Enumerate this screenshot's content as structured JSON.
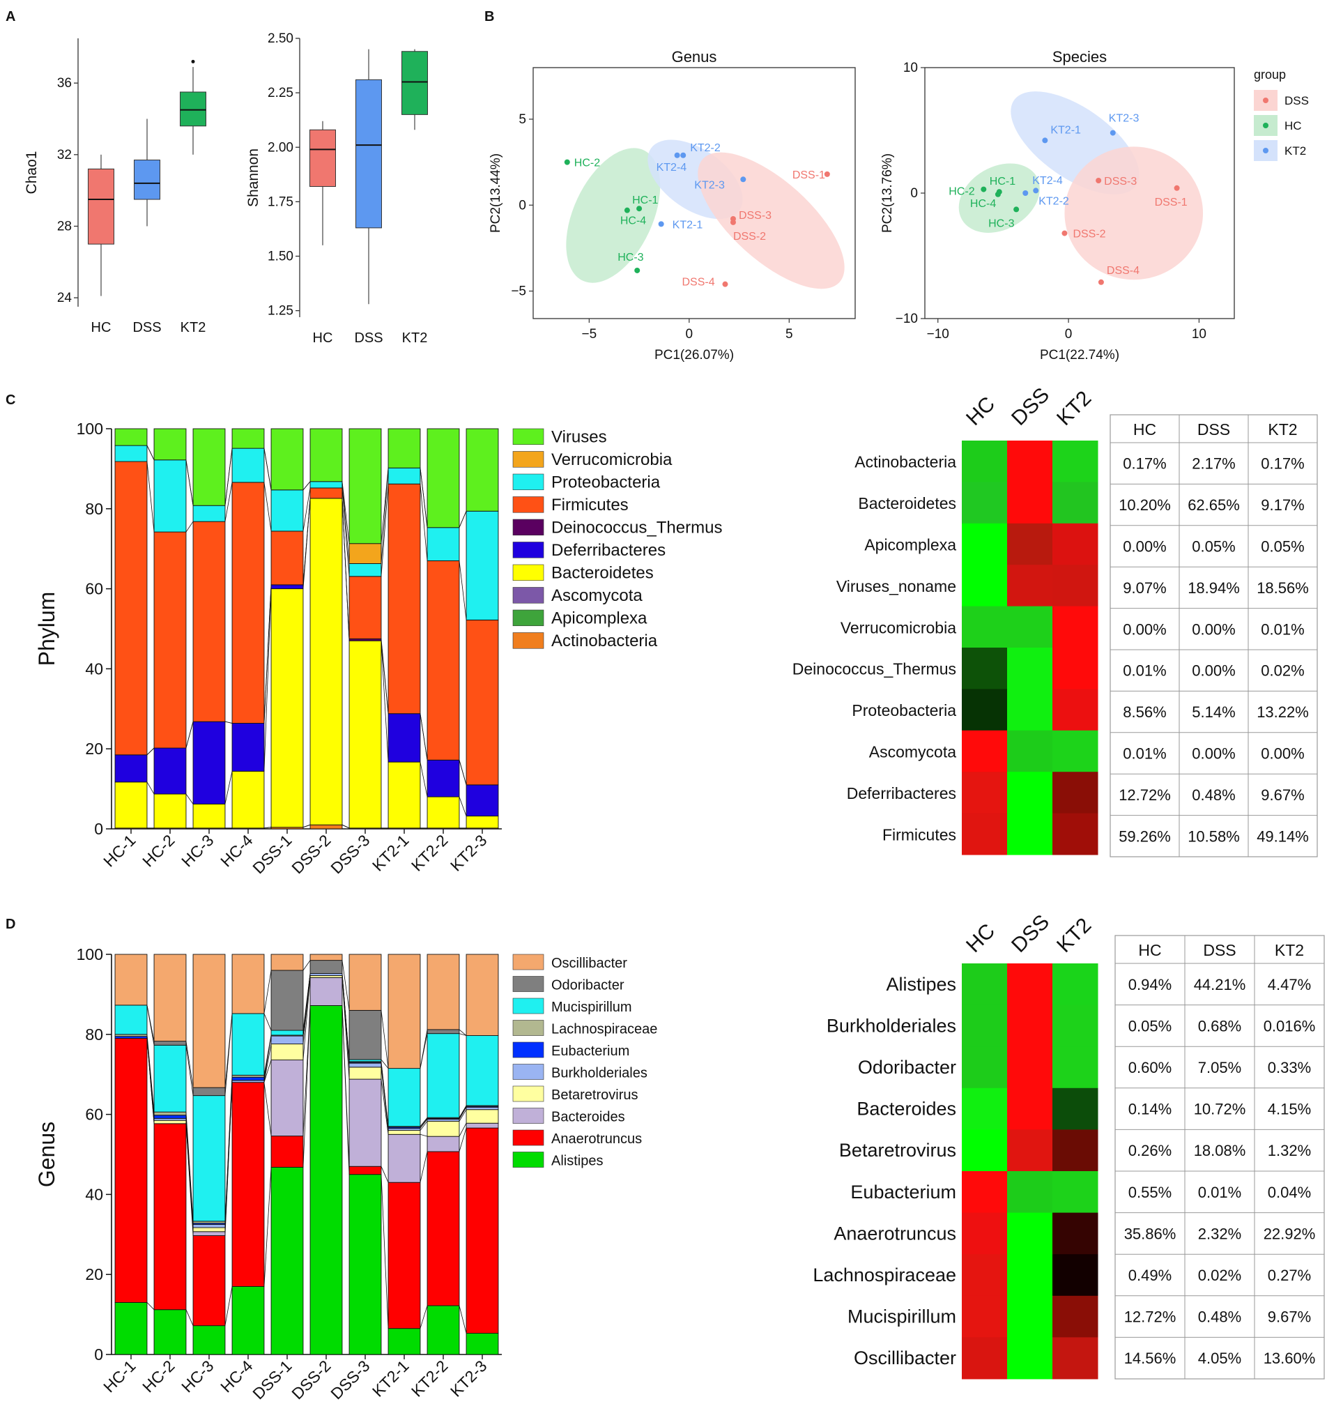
{
  "panel_letters": {
    "a": "A",
    "b": "B",
    "c": "C",
    "d": "D"
  },
  "colors": {
    "HC": "#1fb15a",
    "DSS": "#f0776f",
    "KT2": "#5d98f0"
  },
  "chart_data": [
    {
      "id": "chao1",
      "type": "box",
      "title": "",
      "ylabel": "Chao1",
      "categories": [
        "HC",
        "DSS",
        "KT2"
      ],
      "ylim": [
        23.5,
        38.5
      ],
      "yticks": [
        24,
        28,
        32,
        36
      ],
      "boxes": [
        {
          "group": "HC",
          "min": 24.1,
          "q1": 27.0,
          "median": 29.5,
          "q3": 31.2,
          "max": 32.0,
          "color": "#f0776f"
        },
        {
          "group": "DSS",
          "min": 28.0,
          "q1": 29.5,
          "median": 30.4,
          "q3": 31.7,
          "max": 34.0,
          "color": "#5d98f0"
        },
        {
          "group": "KT2",
          "min": 32.0,
          "q1": 33.6,
          "median": 34.5,
          "q3": 35.5,
          "max": 36.9,
          "color": "#1fb15a",
          "outliers": [
            37.2
          ]
        }
      ]
    },
    {
      "id": "shannon",
      "type": "box",
      "title": "",
      "ylabel": "Shannon",
      "categories": [
        "HC",
        "DSS",
        "KT2"
      ],
      "ylim": [
        1.22,
        2.5
      ],
      "yticks": [
        1.25,
        1.5,
        1.75,
        2.0,
        2.25,
        2.5
      ],
      "ytick_labels": [
        "1.25",
        "1.50",
        "1.75",
        "2.00",
        "2.25",
        "2.50"
      ],
      "boxes": [
        {
          "group": "HC",
          "min": 1.55,
          "q1": 1.82,
          "median": 1.99,
          "q3": 2.08,
          "max": 2.12,
          "color": "#f0776f"
        },
        {
          "group": "DSS",
          "min": 1.28,
          "q1": 1.63,
          "median": 2.01,
          "q3": 2.31,
          "max": 2.45,
          "color": "#5d98f0"
        },
        {
          "group": "KT2",
          "min": 2.08,
          "q1": 2.15,
          "median": 2.3,
          "q3": 2.44,
          "max": 2.45,
          "color": "#1fb15a"
        }
      ]
    },
    {
      "id": "pca_genus",
      "type": "scatter",
      "title": "Genus",
      "xlabel": "PC1(26.07%)",
      "ylabel": "PC2(13.44%)",
      "xlim": [
        -7.8,
        8.3
      ],
      "ylim": [
        -6.6,
        8.0
      ],
      "xticks": [
        -5,
        0,
        5
      ],
      "xtick_labels": [
        "−5",
        "0",
        "5"
      ],
      "yticks": [
        -5,
        0,
        5
      ],
      "ytick_labels": [
        "−5",
        "0",
        "5"
      ],
      "ellipses": [
        {
          "group": "HC",
          "cx": -3.8,
          "cy": -0.6,
          "rx": 3.6,
          "ry": 2.3,
          "angle_deg": -65
        },
        {
          "group": "KT2",
          "cx": 0.3,
          "cy": 1.5,
          "rx": 2.7,
          "ry": 1.75,
          "angle_deg": 35
        },
        {
          "group": "DSS",
          "cx": 4.1,
          "cy": -0.9,
          "rx": 4.6,
          "ry": 2.3,
          "angle_deg": 42
        }
      ],
      "points": [
        {
          "label": "HC-2",
          "group": "HC",
          "x": -6.1,
          "y": 2.5
        },
        {
          "label": "HC-1",
          "group": "HC",
          "x": -2.5,
          "y": -0.2
        },
        {
          "label": "HC-4",
          "group": "HC",
          "x": -3.1,
          "y": -0.3
        },
        {
          "label": "HC-3",
          "group": "HC",
          "x": -2.6,
          "y": -3.8
        },
        {
          "label": "KT2-2",
          "group": "KT2",
          "x": -0.3,
          "y": 2.9
        },
        {
          "label": "KT2-4",
          "group": "KT2",
          "x": -0.6,
          "y": 2.9
        },
        {
          "label": "KT2-3",
          "group": "KT2",
          "x": 2.7,
          "y": 1.5
        },
        {
          "label": "KT2-1",
          "group": "KT2",
          "x": -1.4,
          "y": -1.1
        },
        {
          "label": "DSS-1",
          "group": "DSS",
          "x": 6.9,
          "y": 1.8
        },
        {
          "label": "DSS-3",
          "group": "DSS",
          "x": 2.2,
          "y": -0.8
        },
        {
          "label": "DSS-2",
          "group": "DSS",
          "x": 2.2,
          "y": -1.0
        },
        {
          "label": "DSS-4",
          "group": "DSS",
          "x": 1.8,
          "y": -4.6
        }
      ]
    },
    {
      "id": "pca_species",
      "type": "scatter",
      "title": "Species",
      "xlabel": "PC1(22.74%)",
      "ylabel": "PC2(13.76%)",
      "xlim": [
        -11.0,
        12.7
      ],
      "ylim": [
        -10.0,
        10.0
      ],
      "xticks": [
        -10,
        0,
        10
      ],
      "xtick_labels": [
        "−10",
        "0",
        "10"
      ],
      "yticks": [
        -10,
        0,
        10
      ],
      "ytick_labels": [
        "−10",
        "0",
        "10"
      ],
      "legend": {
        "title": "group",
        "entries": [
          "DSS",
          "HC",
          "KT2"
        ]
      },
      "ellipses": [
        {
          "group": "HC",
          "cx": -5.3,
          "cy": -0.4,
          "rx": 3.3,
          "ry": 2.5,
          "angle_deg": -30
        },
        {
          "group": "KT2",
          "cx": 0.5,
          "cy": 4.0,
          "rx": 5.7,
          "ry": 2.8,
          "angle_deg": 35
        },
        {
          "group": "DSS",
          "cx": 5.0,
          "cy": -1.6,
          "rx": 5.3,
          "ry": 5.3,
          "angle_deg": 0
        }
      ],
      "points": [
        {
          "label": "HC-1",
          "group": "HC",
          "x": -5.3,
          "y": 0.1
        },
        {
          "label": "HC-2",
          "group": "HC",
          "x": -6.5,
          "y": 0.3
        },
        {
          "label": "HC-4",
          "group": "HC",
          "x": -5.4,
          "y": -0.1
        },
        {
          "label": "HC-3",
          "group": "HC",
          "x": -4.0,
          "y": -1.3
        },
        {
          "label": "KT2-1",
          "group": "KT2",
          "x": -1.8,
          "y": 4.2
        },
        {
          "label": "KT2-3",
          "group": "KT2",
          "x": 3.4,
          "y": 4.8
        },
        {
          "label": "KT2-4",
          "group": "KT2",
          "x": -3.3,
          "y": 0.0
        },
        {
          "label": "KT2-2",
          "group": "KT2",
          "x": -2.5,
          "y": 0.2
        },
        {
          "label": "DSS-3",
          "group": "DSS",
          "x": 2.3,
          "y": 1.0
        },
        {
          "label": "DSS-1",
          "group": "DSS",
          "x": 8.3,
          "y": 0.4
        },
        {
          "label": "DSS-2",
          "group": "DSS",
          "x": -0.3,
          "y": -3.2
        },
        {
          "label": "DSS-4",
          "group": "DSS",
          "x": 2.5,
          "y": -7.1
        }
      ]
    },
    {
      "id": "phylum_bar",
      "type": "bar",
      "stacked": true,
      "ylabel": "Phylum",
      "ylim": [
        0,
        100
      ],
      "yticks": [
        0,
        20,
        40,
        60,
        80,
        100
      ],
      "categories": [
        "HC-1",
        "HC-2",
        "HC-3",
        "HC-4",
        "DSS-1",
        "DSS-2",
        "DSS-3",
        "KT2-1",
        "KT2-2",
        "KT2-3"
      ],
      "series": [
        {
          "name": "Actinobacteria",
          "color": "#f07e1e",
          "values": [
            0.2,
            0.2,
            0.2,
            0.2,
            0.4,
            1.0,
            0.2,
            0.2,
            0.2,
            0.2
          ]
        },
        {
          "name": "Apicomplexa",
          "color": "#3ea43b",
          "values": [
            0,
            0,
            0,
            0,
            0,
            0,
            0,
            0,
            0,
            0
          ]
        },
        {
          "name": "Ascomycota",
          "color": "#7c58a8",
          "values": [
            0,
            0,
            0,
            0,
            0,
            0,
            0,
            0,
            0,
            0
          ]
        },
        {
          "name": "Bacteroidetes",
          "color": "#ffff00",
          "values": [
            11.5,
            8.5,
            6.0,
            14.2,
            59.6,
            81.6,
            46.8,
            16.5,
            7.8,
            3.0
          ]
        },
        {
          "name": "Deferribacteres",
          "color": "#1f00df",
          "values": [
            6.8,
            11.5,
            20.6,
            12.0,
            1.0,
            0,
            0,
            12.1,
            9.2,
            7.8
          ]
        },
        {
          "name": "Deinococcus_Thermus",
          "color": "#5a0060",
          "values": [
            0,
            0,
            0,
            0,
            0,
            0,
            0.5,
            0,
            0,
            0
          ]
        },
        {
          "name": "Firmicutes",
          "color": "#ff5115",
          "values": [
            73.3,
            54.0,
            50.0,
            60.2,
            13.4,
            2.6,
            15.6,
            57.4,
            49.8,
            41.2
          ]
        },
        {
          "name": "Proteobacteria",
          "color": "#1ff0f0",
          "values": [
            4.0,
            18.0,
            4.0,
            8.5,
            10.3,
            1.6,
            3.2,
            4.0,
            8.3,
            27.2
          ]
        },
        {
          "name": "Verrucomicrobia",
          "color": "#f3a51c",
          "values": [
            0,
            0,
            0,
            0,
            0,
            0,
            5.0,
            0,
            0,
            0
          ]
        },
        {
          "name": "Viruses",
          "color": "#5ef01e",
          "values": [
            4.2,
            7.8,
            19.2,
            4.9,
            15.3,
            13.2,
            28.7,
            9.8,
            24.7,
            20.6
          ]
        }
      ]
    },
    {
      "id": "genus_bar",
      "type": "bar",
      "stacked": true,
      "ylabel": "Genus",
      "ylim": [
        0,
        100
      ],
      "yticks": [
        0,
        20,
        40,
        60,
        80,
        100
      ],
      "categories": [
        "HC-1",
        "HC-2",
        "HC-3",
        "HC-4",
        "DSS-1",
        "DSS-2",
        "DSS-3",
        "KT2-1",
        "KT2-2",
        "KT2-3"
      ],
      "series": [
        {
          "name": "Alistipes",
          "color": "#00dc00",
          "values": [
            13.0,
            11.2,
            7.2,
            17.0,
            46.8,
            87.2,
            45.0,
            6.5,
            12.2,
            5.3
          ]
        },
        {
          "name": "Anaerotruncus",
          "color": "#ff0000",
          "values": [
            66.0,
            46.5,
            22.5,
            51.0,
            7.8,
            0,
            2.0,
            36.5,
            38.5,
            51.3
          ]
        },
        {
          "name": "Bacteroides",
          "color": "#c0b0d8",
          "values": [
            0,
            0,
            1.0,
            0,
            19.0,
            7.0,
            21.8,
            12.0,
            3.8,
            1.2
          ]
        },
        {
          "name": "Betaretrovirus",
          "color": "#ffffa0",
          "values": [
            0,
            0.8,
            1.0,
            0,
            4.0,
            0.5,
            3.0,
            1.0,
            3.8,
            3.4
          ]
        },
        {
          "name": "Burkholderiales",
          "color": "#9ab4f2",
          "values": [
            0,
            0.5,
            0.8,
            0.5,
            2.0,
            0.5,
            1.0,
            0.5,
            0.5,
            0.6
          ]
        },
        {
          "name": "Eubacterium",
          "color": "#0030ff",
          "values": [
            0.5,
            0.8,
            0.3,
            0.8,
            0,
            0,
            0.2,
            0.3,
            0.2,
            0.2
          ]
        },
        {
          "name": "Lachnospiraceae",
          "color": "#b2b890",
          "values": [
            0.5,
            0.8,
            0.5,
            0.5,
            0.2,
            0,
            0.2,
            0.2,
            0.2,
            0.2
          ]
        },
        {
          "name": "Mucispirillum",
          "color": "#1ff0f0",
          "values": [
            7.3,
            16.7,
            31.4,
            15.4,
            1.2,
            0,
            0.5,
            14.5,
            21.0,
            17.5
          ]
        },
        {
          "name": "Odoribacter",
          "color": "#7f7f7f",
          "values": [
            0,
            1.0,
            2.0,
            0,
            15.0,
            3.3,
            12.3,
            0,
            1.0,
            0
          ]
        },
        {
          "name": "Oscillibacter",
          "color": "#f4a86e",
          "values": [
            12.7,
            21.7,
            33.3,
            14.8,
            4.0,
            1.5,
            14.0,
            28.5,
            18.8,
            20.3
          ]
        }
      ]
    },
    {
      "id": "phylum_heatmap",
      "type": "heatmap",
      "columns": [
        "HC",
        "DSS",
        "KT2"
      ],
      "rows": [
        "Actinobacteria",
        "Bacteroidetes",
        "Apicomplexa",
        "Viruses_noname",
        "Verrucomicrobia",
        "Deinococcus_Thermus",
        "Proteobacteria",
        "Ascomycota",
        "Deferribacteres",
        "Firmicutes"
      ],
      "cell_colors": [
        [
          "#1dcc1a",
          "#ff0a0a",
          "#1dd31a"
        ],
        [
          "#20c822",
          "#ff0a0a",
          "#22c520"
        ],
        [
          "#00ff00",
          "#b81a0e",
          "#dc1210"
        ],
        [
          "#00ff00",
          "#d21610",
          "#d01610"
        ],
        [
          "#1ed01a",
          "#1ed01a",
          "#ff0a0a"
        ],
        [
          "#0d5208",
          "#10f010",
          "#ff0a0a"
        ],
        [
          "#063304",
          "#10f010",
          "#ec1010"
        ],
        [
          "#ff0a0a",
          "#1dcc1a",
          "#1dd31a"
        ],
        [
          "#e51510",
          "#00ff00",
          "#8a0e06"
        ],
        [
          "#e01510",
          "#00ff00",
          "#a00e08"
        ]
      ]
    },
    {
      "id": "phylum_table",
      "type": "table",
      "columns": [
        "HC",
        "DSS",
        "KT2"
      ],
      "rows": [
        [
          "0.17%",
          "2.17%",
          "0.17%"
        ],
        [
          "10.20%",
          "62.65%",
          "9.17%"
        ],
        [
          "0.00%",
          "0.05%",
          "0.05%"
        ],
        [
          "9.07%",
          "18.94%",
          "18.56%"
        ],
        [
          "0.00%",
          "0.00%",
          "0.01%"
        ],
        [
          "0.01%",
          "0.00%",
          "0.02%"
        ],
        [
          "8.56%",
          "5.14%",
          "13.22%"
        ],
        [
          "0.01%",
          "0.00%",
          "0.00%"
        ],
        [
          "12.72%",
          "0.48%",
          "9.67%"
        ],
        [
          "59.26%",
          "10.58%",
          "49.14%"
        ]
      ]
    },
    {
      "id": "genus_heatmap",
      "type": "heatmap",
      "columns": [
        "HC",
        "DSS",
        "KT2"
      ],
      "rows": [
        "Alistipes",
        "Burkholderiales",
        "Odoribacter",
        "Bacteroides",
        "Betaretrovirus",
        "Eubacterium",
        "Anaerotruncus",
        "Lachnospiraceae",
        "Mucispirillum",
        "Oscillibacter"
      ],
      "cell_colors": [
        [
          "#1dcc1a",
          "#ff0a0a",
          "#1ad41a"
        ],
        [
          "#1dcc1a",
          "#ff0a0a",
          "#1dd21a"
        ],
        [
          "#1dcc1a",
          "#ff0a0a",
          "#1dd21a"
        ],
        [
          "#10f010",
          "#ff0a0a",
          "#0c4d0a"
        ],
        [
          "#00ff00",
          "#e01510",
          "#6a0c04"
        ],
        [
          "#ff0a0a",
          "#1dcc1a",
          "#1dd21a"
        ],
        [
          "#ee1010",
          "#00ff00",
          "#350402"
        ],
        [
          "#e51510",
          "#00ff00",
          "#120000"
        ],
        [
          "#e51510",
          "#00ff00",
          "#8a0e06"
        ],
        [
          "#d91510",
          "#00ff00",
          "#c41610"
        ]
      ]
    },
    {
      "id": "genus_table",
      "type": "table",
      "columns": [
        "HC",
        "DSS",
        "KT2"
      ],
      "rows": [
        [
          "0.94%",
          "44.21%",
          "4.47%"
        ],
        [
          "0.05%",
          "0.68%",
          "0.016%"
        ],
        [
          "0.60%",
          "7.05%",
          "0.33%"
        ],
        [
          "0.14%",
          "10.72%",
          "4.15%"
        ],
        [
          "0.26%",
          "18.08%",
          "1.32%"
        ],
        [
          "0.55%",
          "0.01%",
          "0.04%"
        ],
        [
          "35.86%",
          "2.32%",
          "22.92%"
        ],
        [
          "0.49%",
          "0.02%",
          "0.27%"
        ],
        [
          "12.72%",
          "0.48%",
          "9.67%"
        ],
        [
          "14.56%",
          "4.05%",
          "13.60%"
        ]
      ]
    }
  ]
}
